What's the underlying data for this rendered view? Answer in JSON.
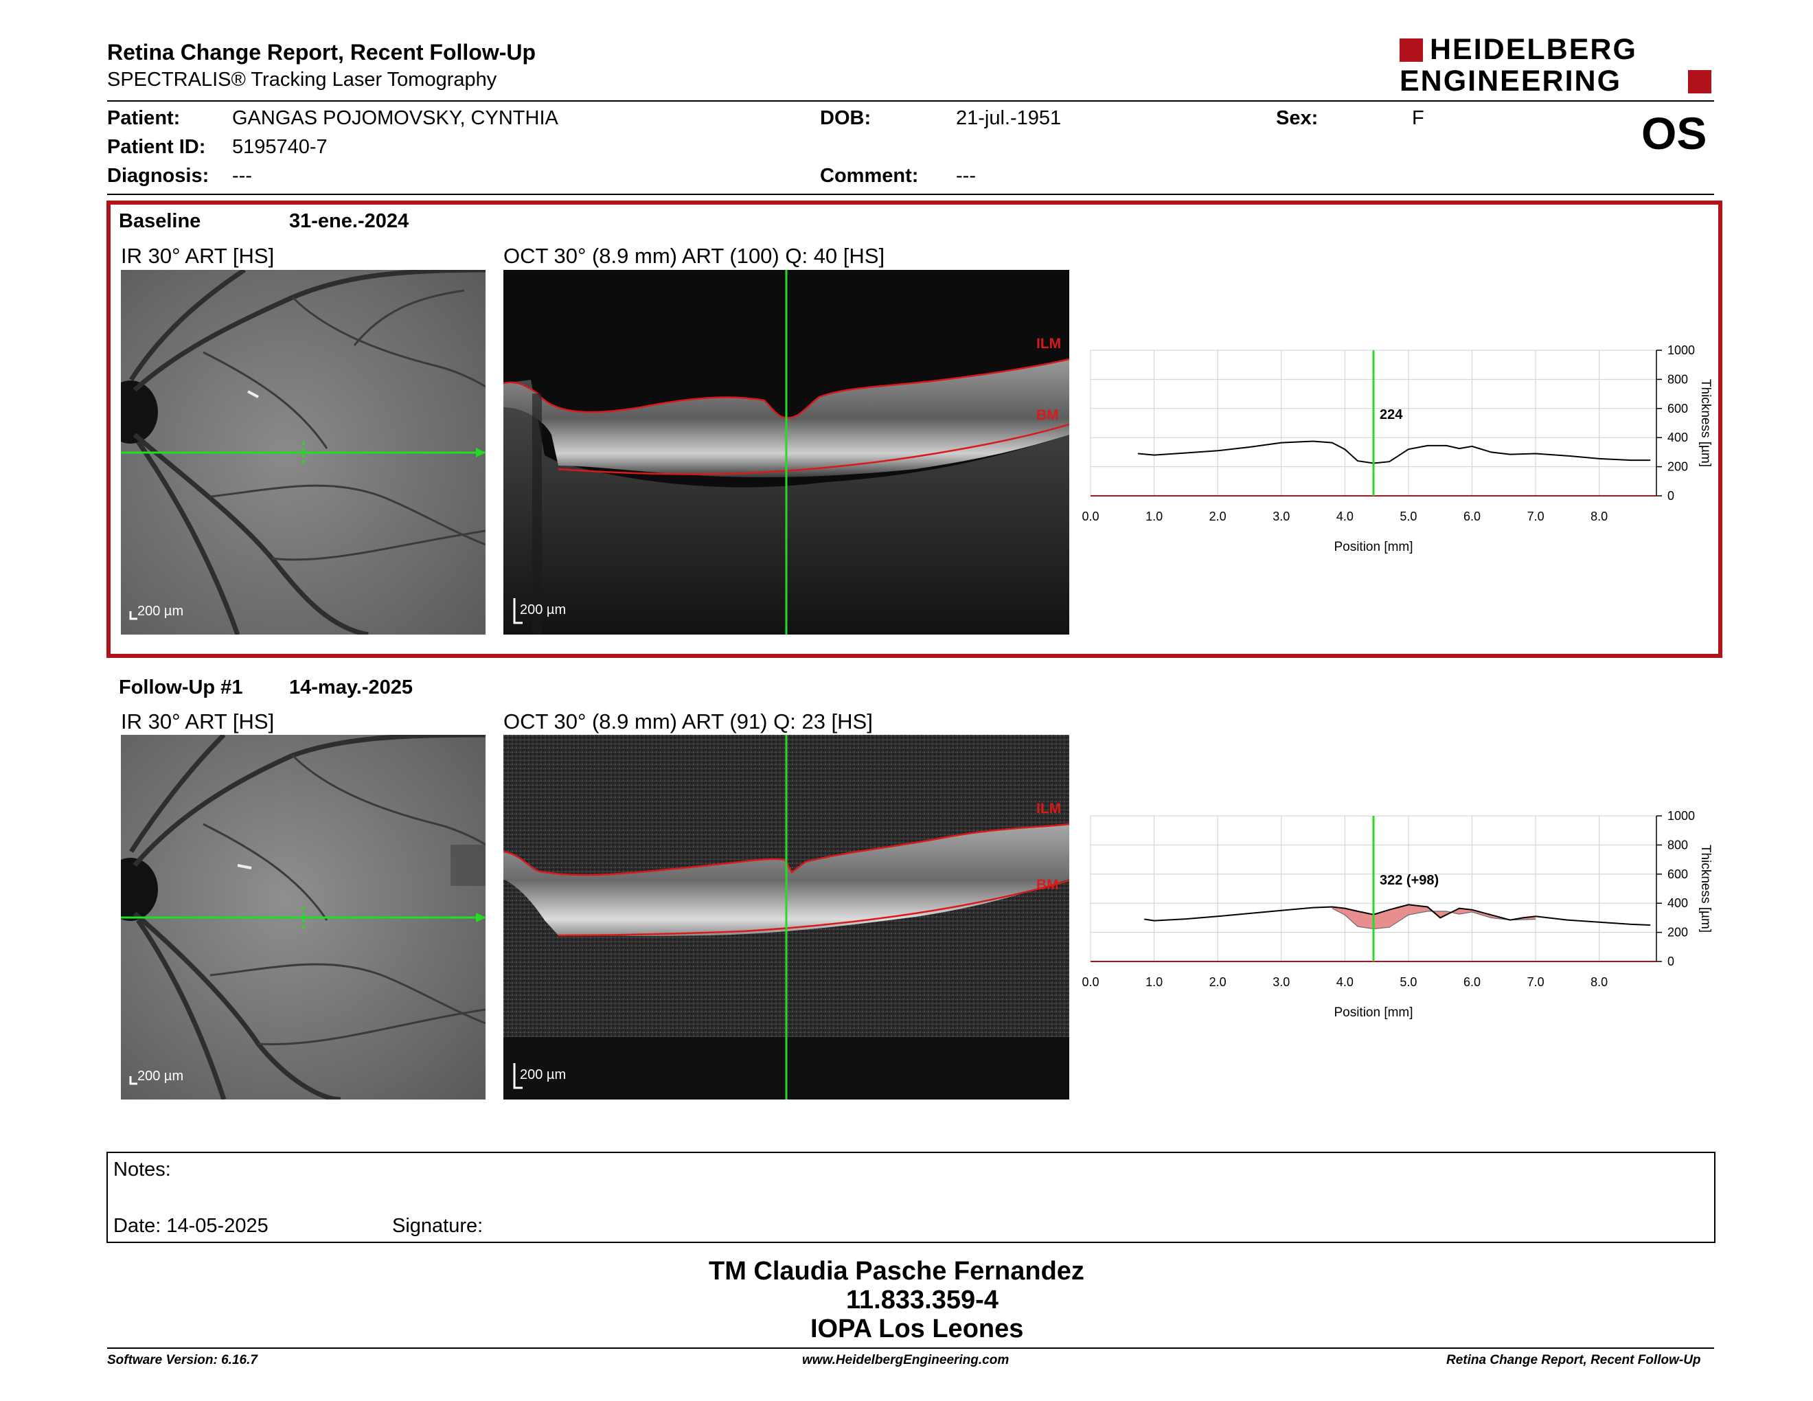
{
  "header": {
    "title": "Retina Change Report, Recent Follow-Up",
    "subtitle": "SPECTRALIS® Tracking Laser Tomography",
    "logo_line1": "HEIDELBERG",
    "logo_line2": "ENGINEERING",
    "eye": "OS"
  },
  "patient": {
    "patient_label": "Patient:",
    "patient_value": "GANGAS POJOMOVSKY, CYNTHIA",
    "id_label": "Patient ID:",
    "id_value": "5195740-7",
    "diagnosis_label": "Diagnosis:",
    "diagnosis_value": "---",
    "dob_label": "DOB:",
    "dob_value": "21-jul.-1951",
    "comment_label": "Comment:",
    "comment_value": "---",
    "sex_label": "Sex:",
    "sex_value": "F"
  },
  "exams": [
    {
      "title": "Baseline",
      "date": "31-ene.-2024",
      "ir_label": "IR 30° ART [HS]",
      "oct_label": "OCT 30° (8.9 mm) ART (100) Q: 40 [HS]",
      "scale": "200 µm",
      "ilm": "ILM",
      "bm": "BM",
      "readout": "224"
    },
    {
      "title": "Follow-Up #1",
      "date": "14-may.-2025",
      "ir_label": "IR 30° ART [HS]",
      "oct_label": "OCT 30° (8.9 mm) ART (91) Q: 23 [HS]",
      "scale": "200 µm",
      "ilm": "ILM",
      "bm": "BM",
      "readout": "322 (+98)"
    }
  ],
  "chart_data": [
    {
      "type": "line",
      "xlabel": "Position [mm]",
      "ylabel": "Thickness [µm]",
      "xlim": [
        0,
        8.9
      ],
      "ylim": [
        0,
        1000
      ],
      "xticks": [
        "0.0",
        "1.0",
        "2.0",
        "3.0",
        "4.0",
        "5.0",
        "6.0",
        "7.0",
        "8.0"
      ],
      "yticks": [
        "0",
        "200",
        "400",
        "600",
        "800",
        "1000"
      ],
      "cursor_x": 4.45,
      "series": [
        {
          "x": [
            0.75,
            1.0,
            1.5,
            2.0,
            2.5,
            3.0,
            3.5,
            3.8,
            4.0,
            4.2,
            4.45,
            4.7,
            5.0,
            5.3,
            5.6,
            5.8,
            6.0,
            6.3,
            6.6,
            7.0,
            7.5,
            8.0,
            8.5,
            8.8
          ],
          "y": [
            290,
            280,
            295,
            310,
            335,
            365,
            375,
            365,
            320,
            240,
            224,
            235,
            320,
            345,
            345,
            325,
            340,
            300,
            285,
            290,
            275,
            255,
            245,
            245
          ]
        }
      ]
    },
    {
      "type": "line",
      "xlabel": "Position [mm]",
      "ylabel": "Thickness [µm]",
      "xlim": [
        0,
        8.9
      ],
      "ylim": [
        0,
        1000
      ],
      "xticks": [
        "0.0",
        "1.0",
        "2.0",
        "3.0",
        "4.0",
        "5.0",
        "6.0",
        "7.0",
        "8.0"
      ],
      "yticks": [
        "0",
        "200",
        "400",
        "600",
        "800",
        "1000"
      ],
      "cursor_x": 4.45,
      "series": [
        {
          "x": [
            0.85,
            1.0,
            1.5,
            2.0,
            2.5,
            3.0,
            3.5,
            3.8,
            4.0,
            4.2,
            4.45,
            4.7,
            5.0,
            5.3,
            5.5,
            5.8,
            6.0,
            6.3,
            6.6,
            6.8,
            7.0,
            7.5,
            8.0,
            8.5,
            8.8
          ],
          "y": [
            290,
            280,
            292,
            310,
            330,
            350,
            370,
            375,
            365,
            345,
            322,
            355,
            390,
            375,
            300,
            365,
            355,
            320,
            285,
            300,
            310,
            285,
            270,
            255,
            250
          ]
        },
        {
          "x": [
            3.8,
            4.0,
            4.2,
            4.45,
            4.7,
            5.0,
            5.3,
            5.6,
            5.8,
            6.0,
            6.3,
            6.6,
            7.0
          ],
          "y": [
            365,
            320,
            240,
            224,
            235,
            320,
            345,
            345,
            325,
            340,
            300,
            285,
            290
          ]
        }
      ]
    }
  ],
  "notes": {
    "notes_label": "Notes:",
    "date_label": "Date: 14-05-2025",
    "signature_label": "Signature:"
  },
  "stamp": {
    "line1": "TM Claudia Pasche Fernandez",
    "line2": "11.833.359-4",
    "line3": "IOPA Los Leones"
  },
  "footer": {
    "left": "Software Version: 6.16.7",
    "center": "www.HeidelbergEngineering.com",
    "right": "Retina Change Report, Recent Follow-Up"
  },
  "colors": {
    "frame_red": "#b1121b",
    "cursor_green": "#22dd22",
    "segmentation_red": "#d81a1a",
    "increase_fill": "#e47a7a",
    "decrease_fill": "#8fcf8f"
  }
}
